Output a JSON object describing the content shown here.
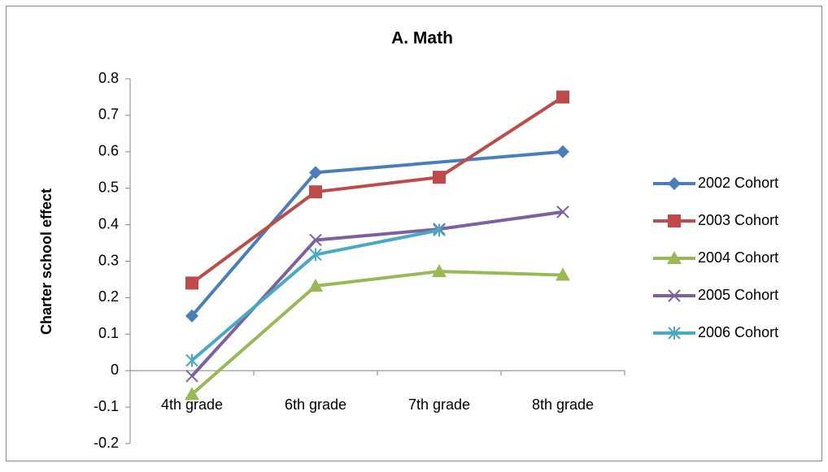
{
  "chart_data": {
    "type": "line",
    "title": "A. Math",
    "y_label": "Charter school effect",
    "categories": [
      "4th grade",
      "6th grade",
      "7th grade",
      "8th grade"
    ],
    "series": [
      {
        "name": "2002 Cohort",
        "color": "#4a7ebb",
        "marker": "diamond",
        "values": [
          0.15,
          0.543,
          null,
          0.6
        ]
      },
      {
        "name": "2003 Cohort",
        "color": "#be4b48",
        "marker": "square",
        "values": [
          0.24,
          0.49,
          0.53,
          0.75
        ]
      },
      {
        "name": "2004 Cohort",
        "color": "#98b954",
        "marker": "triangle",
        "values": [
          -0.065,
          0.232,
          0.272,
          0.262
        ]
      },
      {
        "name": "2005 Cohort",
        "color": "#7d60a0",
        "marker": "x",
        "values": [
          -0.015,
          0.358,
          0.388,
          0.435
        ]
      },
      {
        "name": "2006 Cohort",
        "color": "#46aac5",
        "marker": "star",
        "values": [
          0.028,
          0.318,
          0.385,
          null
        ]
      }
    ],
    "connect_gaps": true,
    "ylim": [
      -0.2,
      0.8
    ],
    "yticks": [
      -0.2,
      -0.1,
      0,
      0.1,
      0.2,
      0.3,
      0.4,
      0.5,
      0.6,
      0.7,
      0.8
    ],
    "grid": false,
    "legend": "right"
  }
}
